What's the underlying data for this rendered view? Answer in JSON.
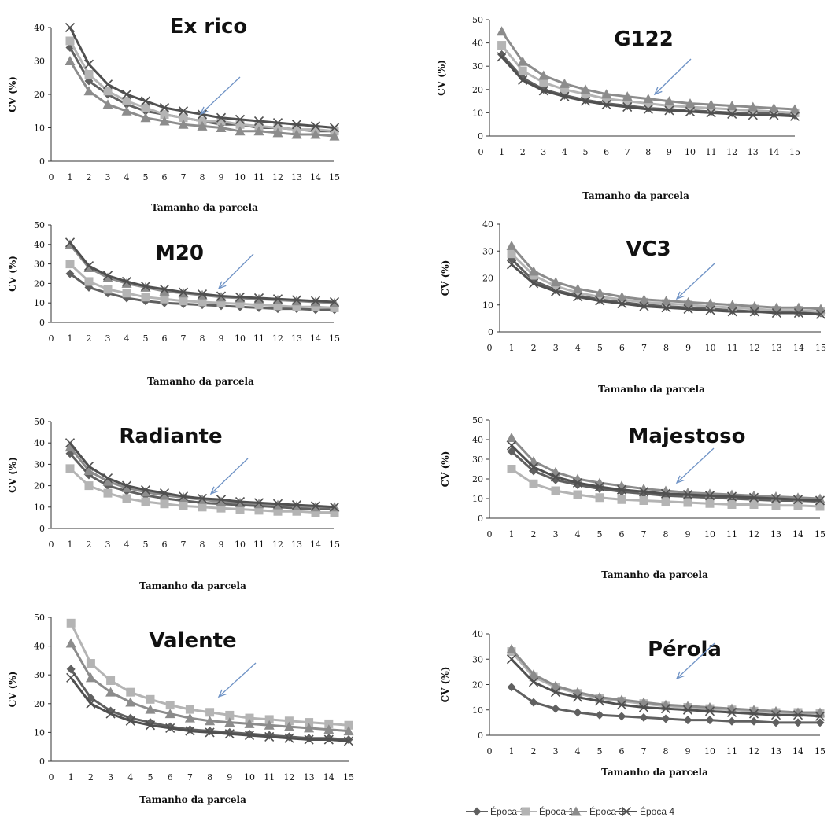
{
  "chart_data": [
    {
      "type": "line",
      "title": "Ex rico",
      "xlabel": "Tamanho da parcela",
      "ylabel": "CV  (%)",
      "x": [
        1,
        2,
        3,
        4,
        5,
        6,
        7,
        8,
        9,
        10,
        11,
        12,
        13,
        14,
        15
      ],
      "xticks": [
        0,
        1,
        2,
        3,
        4,
        5,
        6,
        7,
        8,
        9,
        10,
        11,
        12,
        13,
        14,
        15
      ],
      "ylim": [
        0,
        40
      ],
      "yticks": [
        0,
        10,
        20,
        30,
        40
      ],
      "series": [
        {
          "name": "Época 1",
          "values": [
            34,
            24,
            20,
            17,
            15,
            14,
            13,
            12,
            11,
            11,
            10,
            10,
            9.5,
            9,
            9
          ]
        },
        {
          "name": "Época 1",
          "values": [
            36,
            26,
            21,
            18,
            16,
            14,
            13,
            12,
            12,
            11,
            10.5,
            10,
            9.5,
            9.5,
            9
          ]
        },
        {
          "name": "Época 3",
          "values": [
            30,
            21,
            17,
            15,
            13,
            12,
            11,
            10.5,
            10,
            9,
            9,
            8.5,
            8,
            8,
            7.5
          ]
        },
        {
          "name": "Época 4",
          "values": [
            40,
            29,
            23,
            20,
            18,
            16,
            15,
            14,
            13,
            12.5,
            12,
            11.5,
            11,
            10.5,
            10
          ]
        }
      ]
    },
    {
      "type": "line",
      "title": "G122",
      "xlabel": "Tamanho da parcela",
      "ylabel": "CV  (%)",
      "x": [
        1,
        2,
        3,
        4,
        5,
        6,
        7,
        8,
        9,
        10,
        11,
        12,
        13,
        14,
        15
      ],
      "xticks": [
        0,
        1,
        2,
        3,
        4,
        5,
        6,
        7,
        8,
        9,
        10,
        11,
        12,
        13,
        14,
        15
      ],
      "ylim": [
        0,
        50
      ],
      "yticks": [
        0,
        10,
        20,
        30,
        40,
        50
      ],
      "series": [
        {
          "name": "Época 1",
          "values": [
            35,
            25,
            20,
            17.5,
            15.5,
            14,
            13,
            12,
            11.5,
            11,
            10.5,
            10,
            10,
            9.5,
            9
          ]
        },
        {
          "name": "Época 1",
          "values": [
            39,
            28,
            23,
            20,
            18,
            16,
            15,
            14,
            13,
            12.5,
            12,
            11.5,
            11,
            10.5,
            10
          ]
        },
        {
          "name": "Época 3",
          "values": [
            45,
            32,
            26,
            22.5,
            20,
            18,
            17,
            16,
            15,
            14,
            13.5,
            13,
            12.5,
            12,
            11.5
          ]
        },
        {
          "name": "Época 4",
          "values": [
            34,
            24,
            19.5,
            17,
            15,
            13.5,
            12.5,
            11.5,
            11,
            10.5,
            10,
            9.5,
            9,
            9,
            8.5
          ]
        }
      ]
    },
    {
      "type": "line",
      "title": "M20",
      "xlabel": "Tamanho da parcela",
      "ylabel": "CV  (%)",
      "x": [
        1,
        2,
        3,
        4,
        5,
        6,
        7,
        8,
        9,
        10,
        11,
        12,
        13,
        14,
        15
      ],
      "xticks": [
        0,
        1,
        2,
        3,
        4,
        5,
        6,
        7,
        8,
        9,
        10,
        11,
        12,
        13,
        14,
        15
      ],
      "ylim": [
        0,
        50
      ],
      "yticks": [
        0,
        10,
        20,
        30,
        40,
        50
      ],
      "series": [
        {
          "name": "Época 1",
          "values": [
            25,
            18,
            15,
            12.5,
            11,
            10,
            9.5,
            9,
            8.5,
            8,
            7.5,
            7,
            7,
            6.5,
            6.5
          ]
        },
        {
          "name": "Época 1",
          "values": [
            30,
            21,
            17,
            15,
            13,
            12,
            11,
            10.5,
            10,
            9.5,
            9,
            8.5,
            8,
            8,
            7.5
          ]
        },
        {
          "name": "Época 3",
          "values": [
            40,
            28,
            23,
            20,
            18,
            16,
            15,
            14,
            13,
            12.5,
            12,
            11.5,
            11,
            10.5,
            10
          ]
        },
        {
          "name": "Época 4",
          "values": [
            41,
            29,
            24,
            21,
            18.5,
            17,
            15.5,
            14.5,
            13.5,
            13,
            12.5,
            12,
            11.5,
            11,
            10.5
          ]
        }
      ]
    },
    {
      "type": "line",
      "title": "VC3",
      "xlabel": "Tamanho da parcela",
      "ylabel": "CV  (%)",
      "x": [
        1,
        2,
        3,
        4,
        5,
        6,
        7,
        8,
        9,
        10,
        11,
        12,
        13,
        14,
        15
      ],
      "xticks": [
        0,
        1,
        2,
        3,
        4,
        5,
        6,
        7,
        8,
        9,
        10,
        11,
        12,
        13,
        14,
        15
      ],
      "ylim": [
        0,
        40
      ],
      "yticks": [
        0,
        10,
        20,
        30,
        40
      ],
      "series": [
        {
          "name": "Época 1",
          "values": [
            27,
            19,
            15.5,
            13.5,
            12,
            11,
            10,
            9.5,
            9,
            8.5,
            8,
            7.5,
            7.5,
            7,
            7
          ]
        },
        {
          "name": "Época 1",
          "values": [
            29,
            21,
            17,
            14.5,
            13,
            12,
            11,
            10.5,
            10,
            9.5,
            9,
            8.5,
            8,
            8,
            7.5
          ]
        },
        {
          "name": "Época 3",
          "values": [
            32,
            22.5,
            18.5,
            16,
            14.5,
            13,
            12,
            11.5,
            11,
            10.5,
            10,
            9.5,
            9,
            9,
            8.5
          ]
        },
        {
          "name": "Época 4",
          "values": [
            25,
            18,
            15,
            13,
            11.5,
            10.5,
            9.5,
            9,
            8.5,
            8,
            7.5,
            7.5,
            7,
            7,
            6.5
          ]
        }
      ]
    },
    {
      "type": "line",
      "title": "Radiante",
      "xlabel": "Tamanho da parcela",
      "ylabel": "CV  (%)",
      "x": [
        1,
        2,
        3,
        4,
        5,
        6,
        7,
        8,
        9,
        10,
        11,
        12,
        13,
        14,
        15
      ],
      "xticks": [
        0,
        1,
        2,
        3,
        4,
        5,
        6,
        7,
        8,
        9,
        10,
        11,
        12,
        13,
        14,
        15
      ],
      "ylim": [
        0,
        50
      ],
      "yticks": [
        0,
        10,
        20,
        30,
        40,
        50
      ],
      "series": [
        {
          "name": "Época 1",
          "values": [
            35,
            25,
            20,
            17.5,
            15.5,
            14,
            13,
            12,
            11.5,
            11,
            10.5,
            10,
            9.5,
            9,
            9
          ]
        },
        {
          "name": "Época 1",
          "values": [
            28,
            20,
            16.5,
            14,
            12.5,
            11.5,
            10.5,
            10,
            9.5,
            9,
            8.5,
            8,
            8,
            7.5,
            7.5
          ]
        },
        {
          "name": "Época 3",
          "values": [
            38,
            27,
            22,
            19,
            17,
            15.5,
            14.5,
            13.5,
            12.5,
            12,
            11.5,
            11,
            10.5,
            10,
            10
          ]
        },
        {
          "name": "Época 4",
          "values": [
            40,
            29,
            23.5,
            20,
            18,
            16.5,
            15,
            14,
            13.5,
            12.5,
            12,
            11.5,
            11,
            10.5,
            10
          ]
        }
      ]
    },
    {
      "type": "line",
      "title": "Majestoso",
      "xlabel": "Tamanho da parcela",
      "ylabel": "CV  (%)",
      "x": [
        1,
        2,
        3,
        4,
        5,
        6,
        7,
        8,
        9,
        10,
        11,
        12,
        13,
        14,
        15
      ],
      "xticks": [
        0,
        1,
        2,
        3,
        4,
        5,
        6,
        7,
        8,
        9,
        10,
        11,
        12,
        13,
        14,
        15
      ],
      "ylim": [
        0,
        50
      ],
      "yticks": [
        0,
        10,
        20,
        30,
        40,
        50
      ],
      "series": [
        {
          "name": "Época 1",
          "values": [
            34,
            24,
            19.5,
            17,
            15,
            13.5,
            12.5,
            11.5,
            11,
            10.5,
            10,
            9.5,
            9,
            9,
            8.5
          ]
        },
        {
          "name": "Época 1",
          "values": [
            25,
            17.5,
            14,
            12,
            10.5,
            9.5,
            9,
            8.5,
            8,
            7.5,
            7,
            7,
            6.5,
            6.5,
            6
          ]
        },
        {
          "name": "Época 3",
          "values": [
            41,
            29,
            23.5,
            20,
            18,
            16.5,
            15,
            14,
            13,
            12.5,
            12,
            11.5,
            11,
            10.5,
            10
          ]
        },
        {
          "name": "Época 4",
          "values": [
            37,
            26,
            21,
            18,
            16,
            14.5,
            13.5,
            12.5,
            12,
            11.5,
            11,
            10.5,
            10,
            9.5,
            9
          ]
        }
      ]
    },
    {
      "type": "line",
      "title": "Valente",
      "xlabel": "Tamanho da parcela",
      "ylabel": "CV  (%)",
      "x": [
        1,
        2,
        3,
        4,
        5,
        6,
        7,
        8,
        9,
        10,
        11,
        12,
        13,
        14,
        15
      ],
      "xticks": [
        0,
        1,
        2,
        3,
        4,
        5,
        6,
        7,
        8,
        9,
        10,
        11,
        12,
        13,
        14,
        15
      ],
      "ylim": [
        0,
        50
      ],
      "yticks": [
        0,
        10,
        20,
        30,
        40,
        50
      ],
      "series": [
        {
          "name": "Época 1",
          "values": [
            32,
            22,
            17.5,
            15,
            13.5,
            12,
            11,
            10.5,
            10,
            9.5,
            9,
            8.5,
            8,
            8,
            7.5
          ]
        },
        {
          "name": "Época 1",
          "values": [
            48,
            34,
            28,
            24,
            21.5,
            19.5,
            18,
            17,
            16,
            15,
            14.5,
            14,
            13.5,
            13,
            12.5
          ]
        },
        {
          "name": "Época 3",
          "values": [
            41,
            29,
            24,
            20.5,
            18,
            16.5,
            15,
            14,
            13.5,
            13,
            12.5,
            12,
            11.5,
            11,
            10.5
          ]
        },
        {
          "name": "Época 4",
          "values": [
            29,
            20,
            16.5,
            14,
            12.5,
            11.5,
            10.5,
            10,
            9.5,
            9,
            8.5,
            8,
            7.5,
            7.5,
            7
          ]
        }
      ]
    },
    {
      "type": "line",
      "title": "Pérola",
      "xlabel": "Tamanho da parcela",
      "ylabel": "CV  (%)",
      "x": [
        1,
        2,
        3,
        4,
        5,
        6,
        7,
        8,
        9,
        10,
        11,
        12,
        13,
        14,
        15
      ],
      "xticks": [
        0,
        1,
        2,
        3,
        4,
        5,
        6,
        7,
        8,
        9,
        10,
        11,
        12,
        13,
        14,
        15
      ],
      "ylim": [
        0,
        40
      ],
      "yticks": [
        0,
        10,
        20,
        30,
        40
      ],
      "series": [
        {
          "name": "Época 1",
          "values": [
            19,
            13,
            10.5,
            9,
            8,
            7.5,
            7,
            6.5,
            6,
            6,
            5.5,
            5.5,
            5,
            5,
            5
          ]
        },
        {
          "name": "Época 1",
          "values": [
            33,
            23,
            19,
            16.5,
            14.5,
            13.5,
            12.5,
            11.5,
            11,
            10.5,
            10,
            9.5,
            9,
            9,
            8.5
          ]
        },
        {
          "name": "Época 3",
          "values": [
            34,
            24,
            19.5,
            17,
            15,
            14,
            13,
            12,
            11.5,
            11,
            10.5,
            10,
            9.5,
            9,
            9
          ]
        },
        {
          "name": "Época 4",
          "values": [
            30,
            21,
            17,
            15,
            13.5,
            12,
            11,
            10.5,
            10,
            9.5,
            9,
            8.5,
            8,
            8,
            7.5
          ]
        }
      ]
    }
  ],
  "legend": {
    "placement": "bottom-right",
    "items": [
      {
        "label": "Época 1",
        "marker": "diamond",
        "color": "#606060"
      },
      {
        "label": "Época 1",
        "marker": "square",
        "color": "#b4b4b4"
      },
      {
        "label": "Época 3",
        "marker": "triangle",
        "color": "#8c8c8c"
      },
      {
        "label": "Época 4",
        "marker": "x",
        "color": "#505050"
      }
    ]
  },
  "colors": {
    "series": [
      "#606060",
      "#b4b4b4",
      "#8c8c8c",
      "#505050"
    ],
    "arrow": "#6f93c6",
    "axis": "#333333"
  }
}
